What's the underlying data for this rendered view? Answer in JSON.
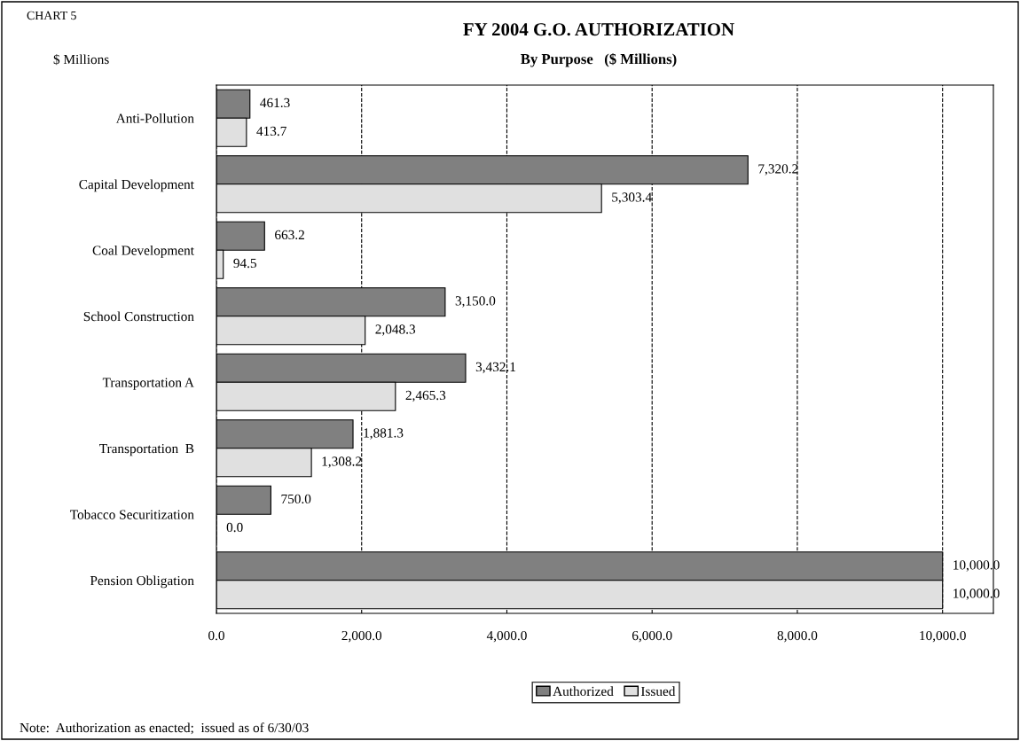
{
  "chart_data": {
    "type": "bar",
    "orientation": "horizontal",
    "title": "FY 2004 G.O. AUTHORIZATION",
    "subtitle": "By Purpose   ($ Millions)",
    "categories": [
      "Anti-Pollution",
      "Capital Development",
      "Coal Development",
      "School Construction",
      "Transportation A",
      "Transportation  B",
      "Tobacco Securitization",
      "Pension Obligation"
    ],
    "series": [
      {
        "name": "Authorized",
        "color": "#808080",
        "values": [
          461.3,
          7320.2,
          663.2,
          3150.0,
          3432.1,
          1881.3,
          750.0,
          10000.0
        ],
        "value_labels": [
          "461.3",
          "7,320.2",
          "663.2",
          "3,150.0",
          "3,432.1",
          "1,881.3",
          "750.0",
          "10,000.0"
        ]
      },
      {
        "name": "Issued",
        "color": "#e0e0e0",
        "values": [
          413.7,
          5303.4,
          94.5,
          2048.3,
          2465.3,
          1308.2,
          0.0,
          10000.0
        ],
        "value_labels": [
          "413.7",
          "5,303.4",
          "94.5",
          "2,048.3",
          "2,465.3",
          "1,308.2",
          "0.0",
          "10,000.0"
        ]
      }
    ],
    "xlim": [
      0,
      10700
    ],
    "xticks": [
      {
        "value": 0,
        "label": "0.0"
      },
      {
        "value": 2000,
        "label": "2,000.0"
      },
      {
        "value": 4000,
        "label": "4,000.0"
      },
      {
        "value": 6000,
        "label": "6,000.0"
      },
      {
        "value": 8000,
        "label": "8,000.0"
      },
      {
        "value": 10000,
        "label": "10,000.0"
      }
    ],
    "grid": "x",
    "line_style": "dashed",
    "legend": "bottom",
    "annotations": [
      "CHART 5",
      "$ Millions",
      "Note:  Authorization as enacted;  issued as of 6/30/03"
    ]
  }
}
